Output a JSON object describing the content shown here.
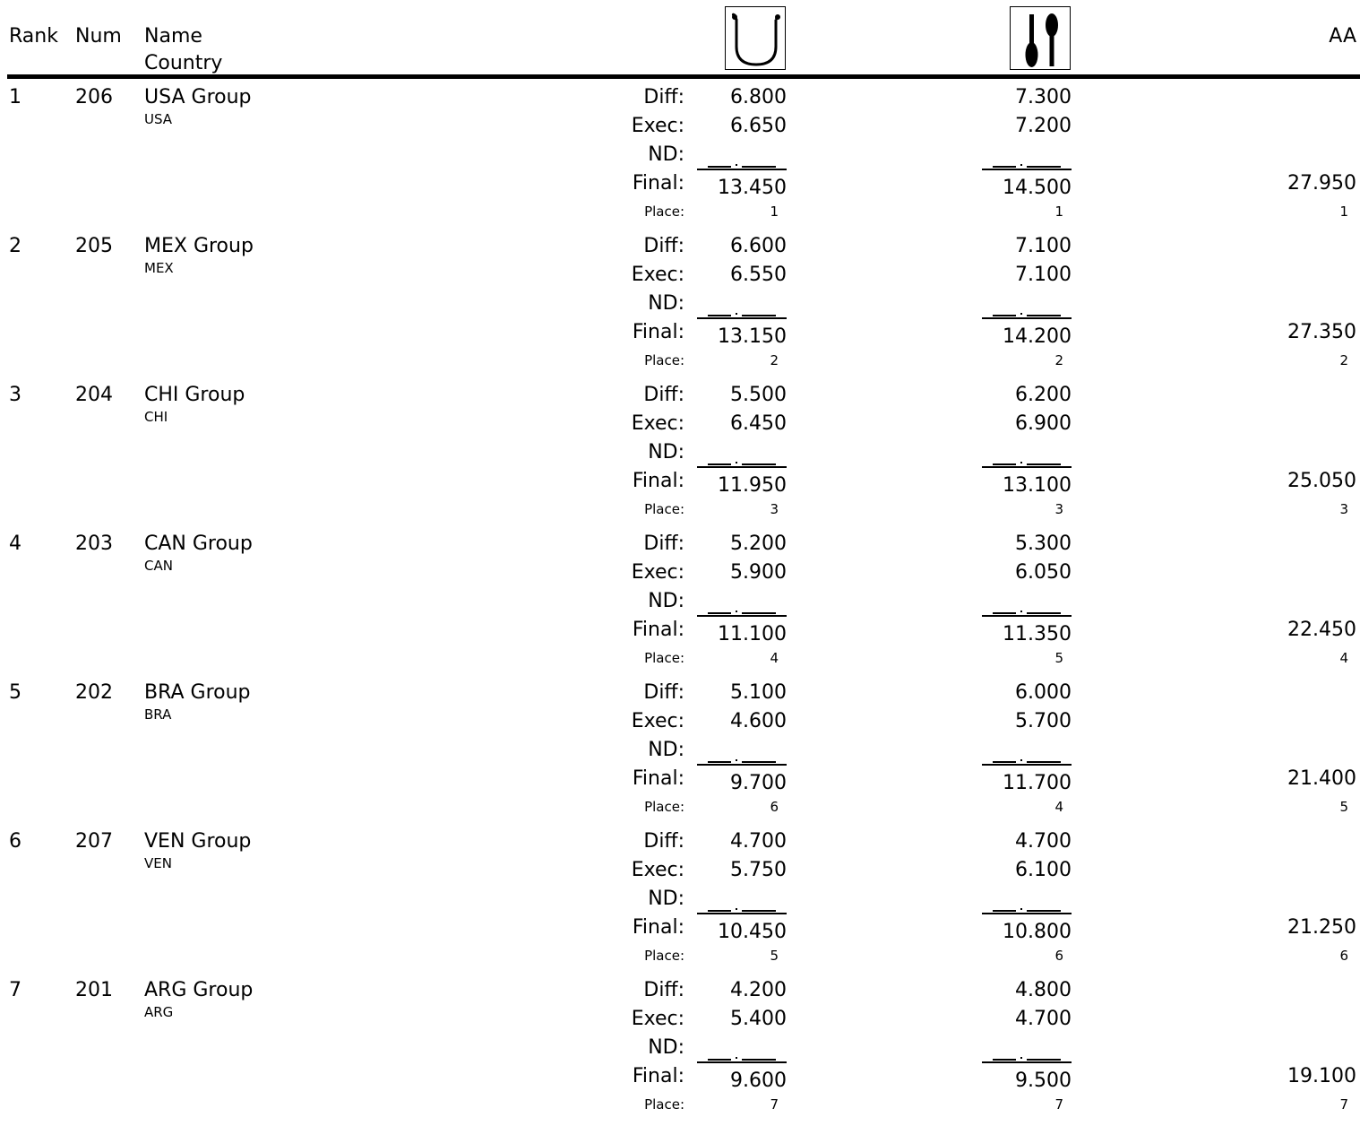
{
  "header": {
    "rank": "Rank",
    "num": "Num",
    "name": "Name",
    "country": "Country",
    "apparatus_1_icon": "pommel-horse-icon",
    "apparatus_2_icon": "clubs-icon",
    "aa": "AA"
  },
  "labels": {
    "diff": "Diff:",
    "exec": "Exec:",
    "nd": "ND:",
    "final": "Final:",
    "place": "Place:"
  },
  "nd_placeholder": "__.___",
  "rows": [
    {
      "rank": "1",
      "num": "206",
      "name": "USA Group",
      "country": "USA",
      "a1": {
        "diff": "6.800",
        "exec": "6.650",
        "final": "13.450",
        "place": "1"
      },
      "a2": {
        "diff": "7.300",
        "exec": "7.200",
        "final": "14.500",
        "place": "1"
      },
      "aa": {
        "total": "27.950",
        "place": "1"
      }
    },
    {
      "rank": "2",
      "num": "205",
      "name": "MEX Group",
      "country": "MEX",
      "a1": {
        "diff": "6.600",
        "exec": "6.550",
        "final": "13.150",
        "place": "2"
      },
      "a2": {
        "diff": "7.100",
        "exec": "7.100",
        "final": "14.200",
        "place": "2"
      },
      "aa": {
        "total": "27.350",
        "place": "2"
      }
    },
    {
      "rank": "3",
      "num": "204",
      "name": "CHI Group",
      "country": "CHI",
      "a1": {
        "diff": "5.500",
        "exec": "6.450",
        "final": "11.950",
        "place": "3"
      },
      "a2": {
        "diff": "6.200",
        "exec": "6.900",
        "final": "13.100",
        "place": "3"
      },
      "aa": {
        "total": "25.050",
        "place": "3"
      }
    },
    {
      "rank": "4",
      "num": "203",
      "name": "CAN Group",
      "country": "CAN",
      "a1": {
        "diff": "5.200",
        "exec": "5.900",
        "final": "11.100",
        "place": "4"
      },
      "a2": {
        "diff": "5.300",
        "exec": "6.050",
        "final": "11.350",
        "place": "5"
      },
      "aa": {
        "total": "22.450",
        "place": "4"
      }
    },
    {
      "rank": "5",
      "num": "202",
      "name": "BRA Group",
      "country": "BRA",
      "a1": {
        "diff": "5.100",
        "exec": "4.600",
        "final": "9.700",
        "place": "6"
      },
      "a2": {
        "diff": "6.000",
        "exec": "5.700",
        "final": "11.700",
        "place": "4"
      },
      "aa": {
        "total": "21.400",
        "place": "5"
      }
    },
    {
      "rank": "6",
      "num": "207",
      "name": "VEN Group",
      "country": "VEN",
      "a1": {
        "diff": "4.700",
        "exec": "5.750",
        "final": "10.450",
        "place": "5"
      },
      "a2": {
        "diff": "4.700",
        "exec": "6.100",
        "final": "10.800",
        "place": "6"
      },
      "aa": {
        "total": "21.250",
        "place": "6"
      }
    },
    {
      "rank": "7",
      "num": "201",
      "name": "ARG Group",
      "country": "ARG",
      "a1": {
        "diff": "4.200",
        "exec": "5.400",
        "final": "9.600",
        "place": "7"
      },
      "a2": {
        "diff": "4.800",
        "exec": "4.700",
        "final": "9.500",
        "place": "7"
      },
      "aa": {
        "total": "19.100",
        "place": "7"
      }
    }
  ]
}
